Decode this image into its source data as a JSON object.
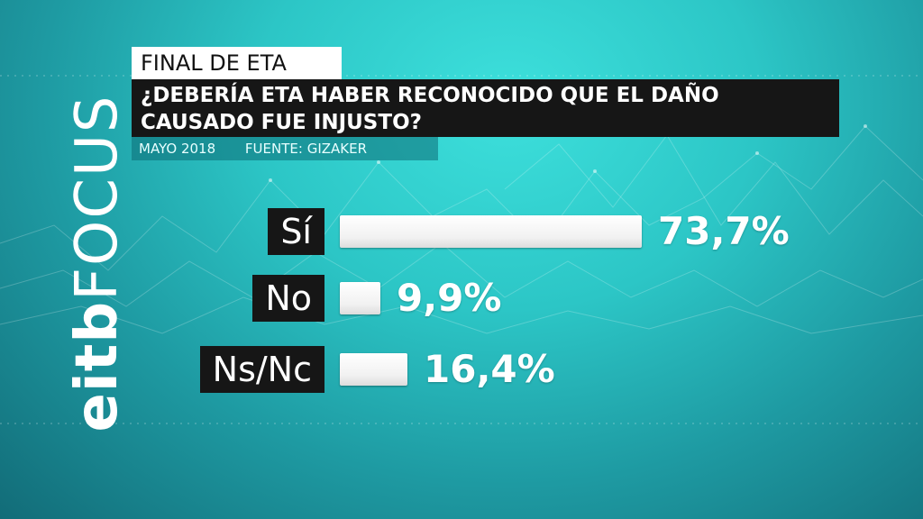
{
  "header": {
    "label": "FINAL DE ETA",
    "question_line1": "¿DEBERÍA ETA HABER RECONOCIDO QUE EL DAÑO",
    "question_line2": "CAUSADO FUE INJUSTO?",
    "date": "MAYO 2018",
    "source": "FUENTE: GIZAKER"
  },
  "logo": {
    "brand": "eitb",
    "product": "FOCUS"
  },
  "colors": {
    "background": "#2cc6c6",
    "label_box": "#161616",
    "bar": "#ffffff"
  },
  "chart_data": {
    "type": "bar",
    "orientation": "horizontal",
    "categories": [
      "Sí",
      "No",
      "Ns/Nc"
    ],
    "values": [
      73.7,
      9.9,
      16.4
    ],
    "value_labels": [
      "73,7%",
      "9,9%",
      "16,4%"
    ],
    "unit": "%"
  }
}
